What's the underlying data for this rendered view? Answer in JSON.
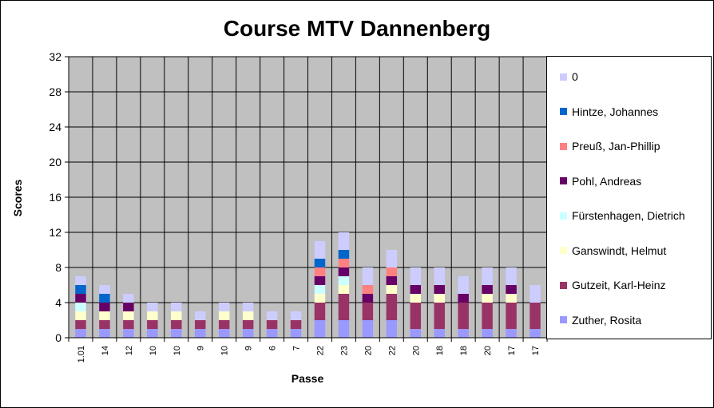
{
  "chart_data": {
    "type": "bar",
    "stacked": true,
    "title": "Course MTV Dannenberg",
    "xlabel": "Passe",
    "ylabel": "Scores",
    "ylim": [
      0,
      32
    ],
    "yticks": [
      "0",
      "4",
      "8",
      "12",
      "16",
      "20",
      "24",
      "28",
      "32"
    ],
    "grid": true,
    "legend_position": "right",
    "categories": [
      "1.01",
      "14",
      "12",
      "10",
      "10",
      "9",
      "10",
      "9",
      "6",
      "7",
      "22",
      "23",
      "20",
      "22",
      "20",
      "18",
      "18",
      "20",
      "17",
      "17"
    ],
    "series": [
      {
        "name": "Zuther, Rosita",
        "color": "#9999ff",
        "values": [
          1,
          1,
          1,
          1,
          1,
          1,
          1,
          1,
          1,
          1,
          2,
          2,
          2,
          2,
          1,
          1,
          1,
          1,
          1,
          1
        ]
      },
      {
        "name": "Gutzeit, Karl-Heinz",
        "color": "#993366",
        "values": [
          1,
          1,
          1,
          1,
          1,
          1,
          1,
          1,
          1,
          1,
          2,
          3,
          2,
          3,
          3,
          3,
          3,
          3,
          3,
          3
        ]
      },
      {
        "name": "Ganswindt, Helmut",
        "color": "#ffffcc",
        "values": [
          1,
          1,
          1,
          1,
          1,
          0,
          1,
          1,
          0,
          0,
          1,
          1,
          0,
          1,
          1,
          1,
          0,
          1,
          1,
          0
        ]
      },
      {
        "name": "Fürstenhagen, Dietrich",
        "color": "#ccffff",
        "values": [
          1,
          0,
          0,
          0,
          0,
          0,
          0,
          0,
          0,
          0,
          1,
          1,
          0,
          0,
          0,
          0,
          0,
          0,
          0,
          0
        ]
      },
      {
        "name": "Pohl, Andreas",
        "color": "#660066",
        "values": [
          1,
          1,
          1,
          0,
          0,
          0,
          0,
          0,
          0,
          0,
          1,
          1,
          1,
          1,
          1,
          1,
          1,
          1,
          1,
          0
        ]
      },
      {
        "name": "Preuß, Jan-Phillip",
        "color": "#ff8080",
        "values": [
          0,
          0,
          0,
          0,
          0,
          0,
          0,
          0,
          0,
          0,
          1,
          1,
          1,
          1,
          0,
          0,
          0,
          0,
          0,
          0
        ]
      },
      {
        "name": "Hintze, Johannes",
        "color": "#0066cc",
        "values": [
          1,
          1,
          0,
          0,
          0,
          0,
          0,
          0,
          0,
          0,
          1,
          1,
          0,
          0,
          0,
          0,
          0,
          0,
          0,
          0
        ]
      },
      {
        "name": "0",
        "color": "#ccccff",
        "values": [
          1,
          1,
          1,
          1,
          1,
          1,
          1,
          1,
          1,
          1,
          2,
          2,
          2,
          2,
          2,
          2,
          2,
          2,
          2,
          2
        ]
      }
    ]
  }
}
